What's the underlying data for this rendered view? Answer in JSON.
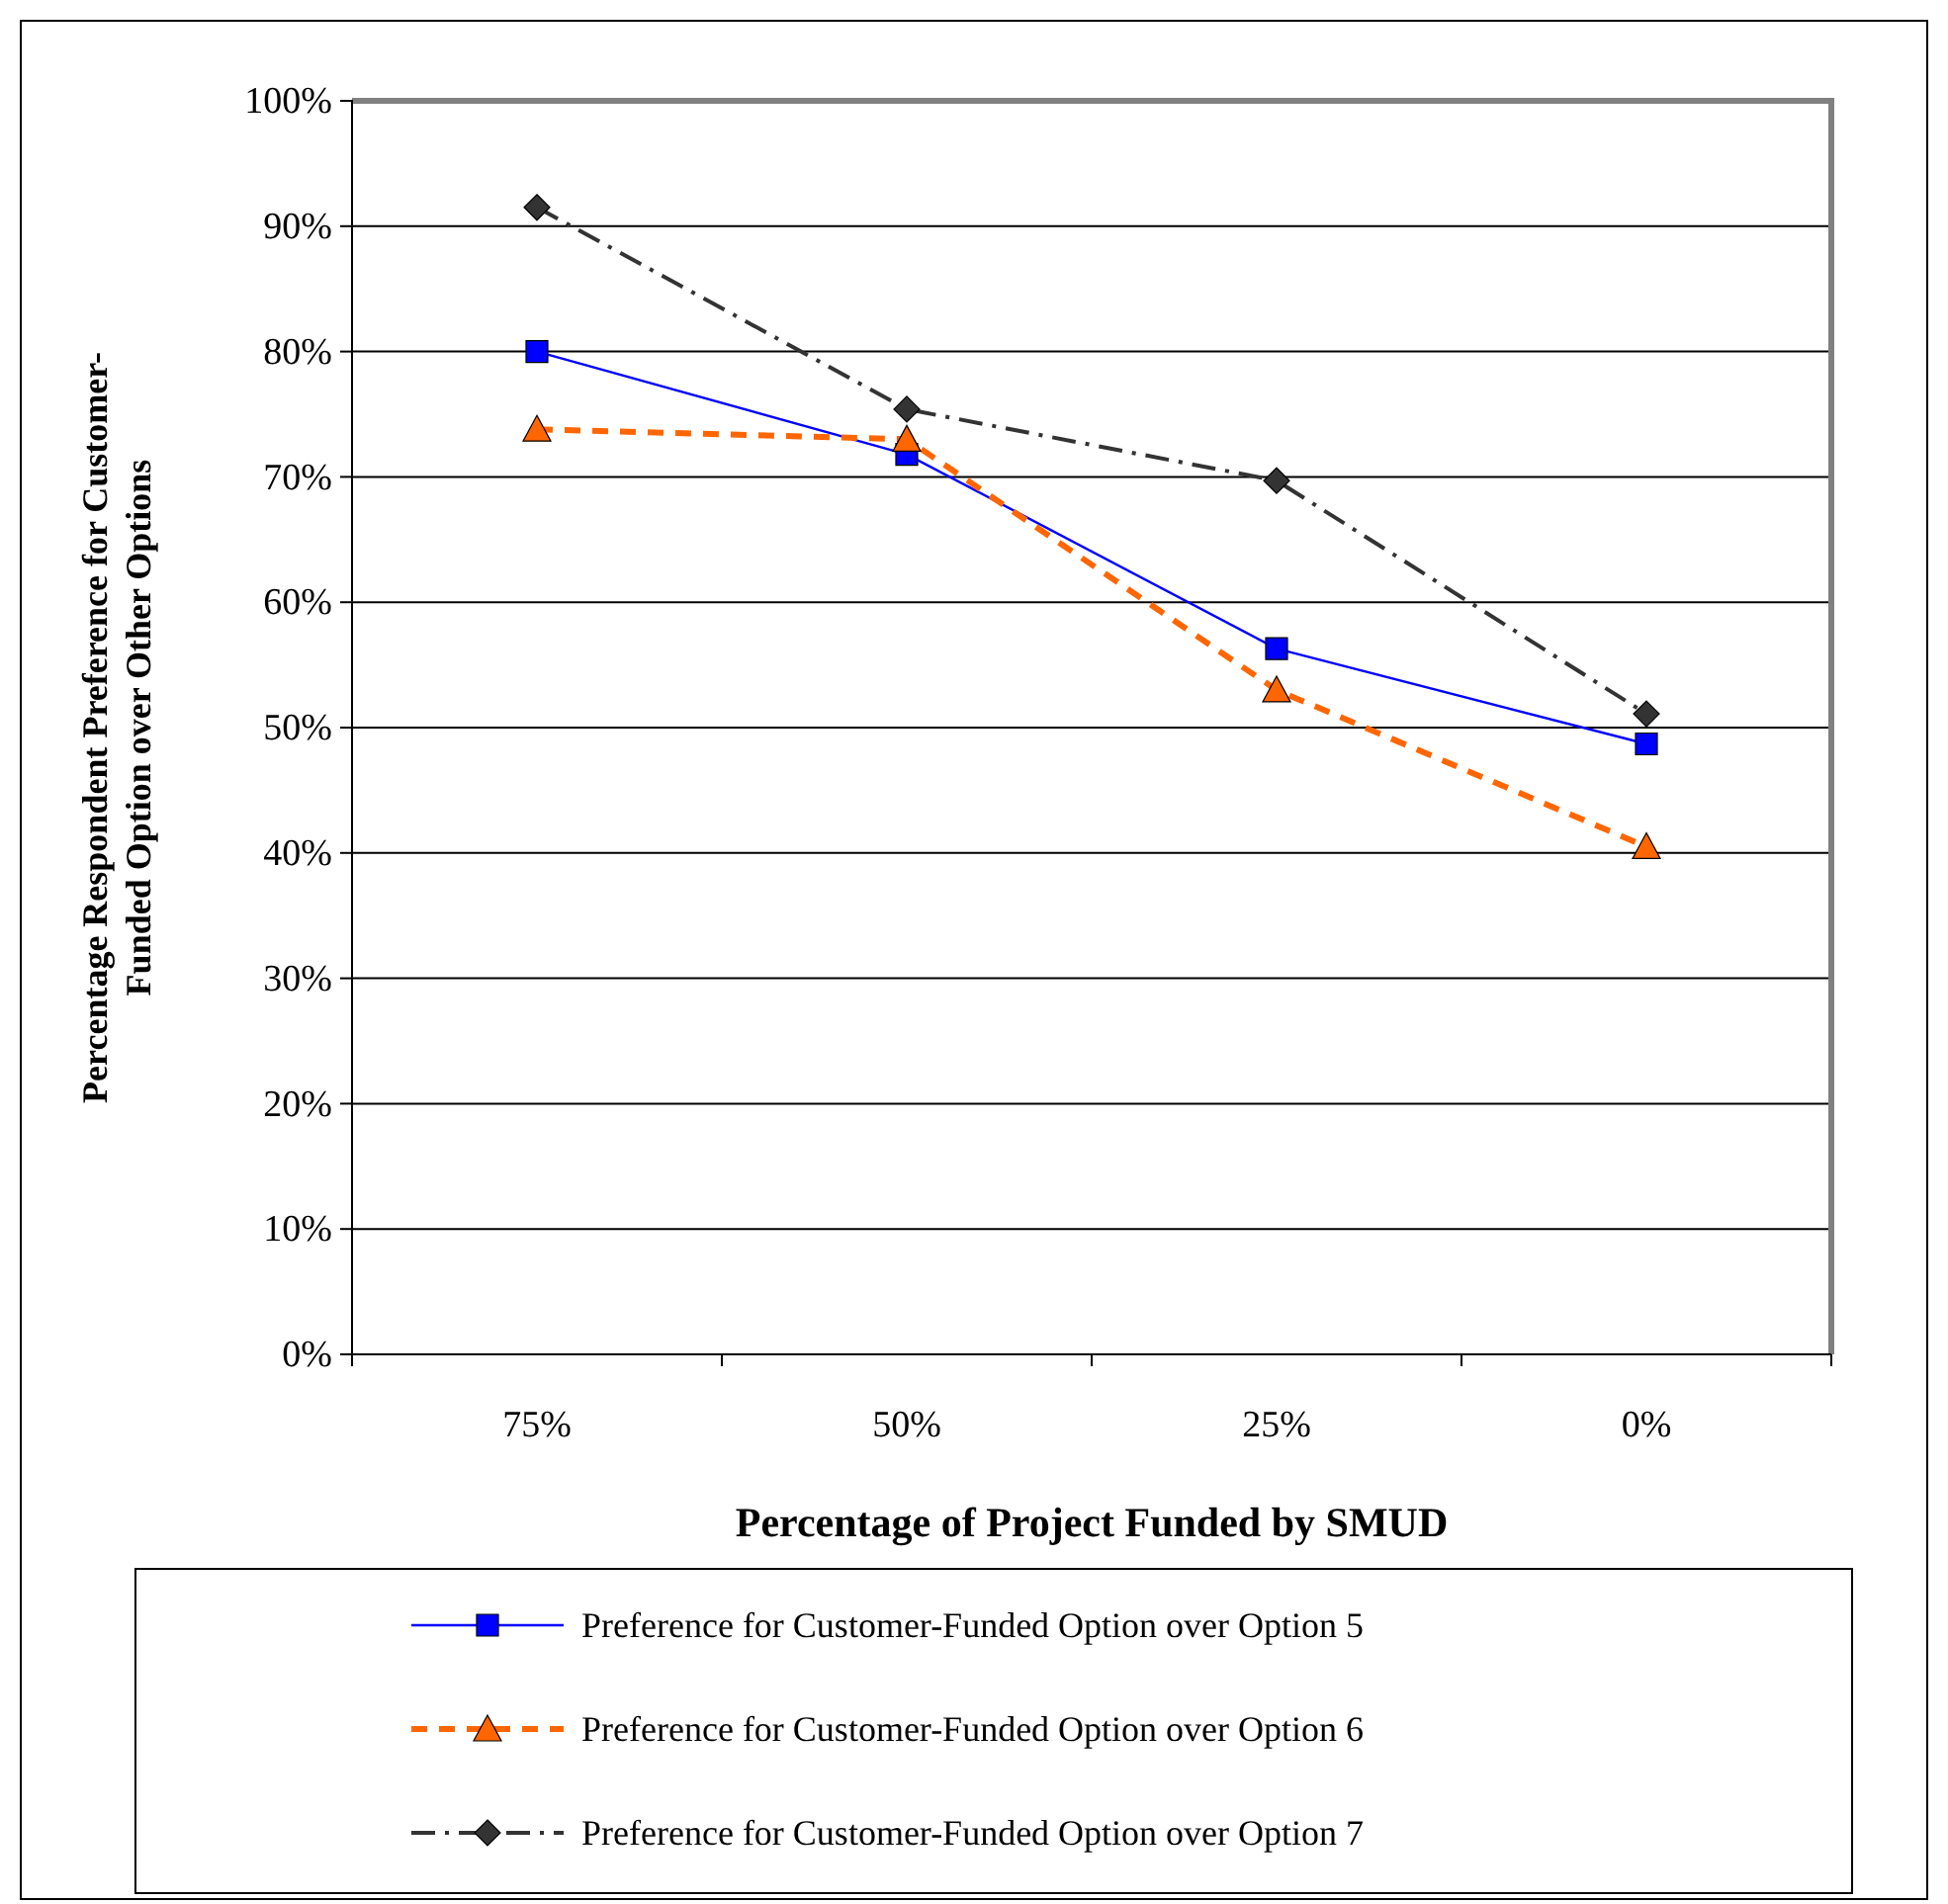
{
  "chart_data": {
    "type": "line",
    "xlabel": "Percentage of Project Funded by SMUD",
    "ylabel": "Percentage Respondent Preference for Customer-Funded Option over Other Options",
    "categories": [
      "75%",
      "50%",
      "25%",
      "0%"
    ],
    "ylim": [
      0,
      100
    ],
    "yticks": [
      {
        "value": 0,
        "label": "0%"
      },
      {
        "value": 10,
        "label": "10%"
      },
      {
        "value": 20,
        "label": "20%"
      },
      {
        "value": 30,
        "label": "30%"
      },
      {
        "value": 40,
        "label": "40%"
      },
      {
        "value": 50,
        "label": "50%"
      },
      {
        "value": 60,
        "label": "60%"
      },
      {
        "value": 70,
        "label": "70%"
      },
      {
        "value": 80,
        "label": "80%"
      },
      {
        "value": 90,
        "label": "90%"
      },
      {
        "value": 100,
        "label": "100%"
      }
    ],
    "grid": "y",
    "legend": "bottom",
    "series": [
      {
        "name": "Preference for Customer-Funded Option over Option 5",
        "color": "#0000ff",
        "marker": "square",
        "line_style": "solid",
        "values": [
          80.0,
          71.8,
          56.3,
          48.7
        ]
      },
      {
        "name": "Preference for Customer-Funded Option over Option 6",
        "color": "#ff6600",
        "marker": "triangle",
        "line_style": "dashed",
        "values": [
          73.8,
          73.0,
          53.0,
          40.5
        ]
      },
      {
        "name": "Preference for Customer-Funded Option over Option 7",
        "color": "#333333",
        "marker": "diamond",
        "line_style": "dashdot",
        "values": [
          91.5,
          75.4,
          69.7,
          51.1
        ]
      }
    ]
  }
}
